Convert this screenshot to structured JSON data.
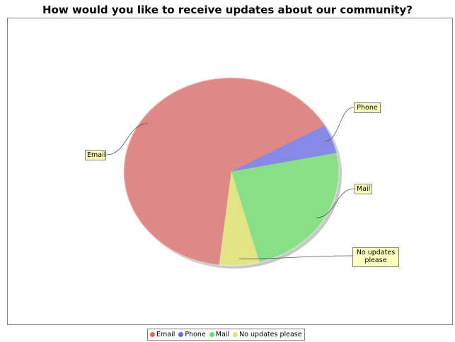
{
  "chart_data": {
    "type": "pie",
    "title": "How would you like to receive updates about our community?",
    "slices": [
      {
        "label": "Email",
        "value": 65,
        "color": "#df8888"
      },
      {
        "label": "Phone",
        "value": 5,
        "color": "#8888e6"
      },
      {
        "label": "Mail",
        "value": 24,
        "color": "#88df88"
      },
      {
        "label": "No updates please",
        "value": 6,
        "color": "#e3e388"
      }
    ],
    "callouts": {
      "email": "Email",
      "phone": "Phone",
      "mail": "Mail",
      "no_updates": "No updates please"
    },
    "legend": {
      "position": "bottom",
      "items": [
        "Email",
        "Phone",
        "Mail",
        "No updates please"
      ]
    }
  }
}
